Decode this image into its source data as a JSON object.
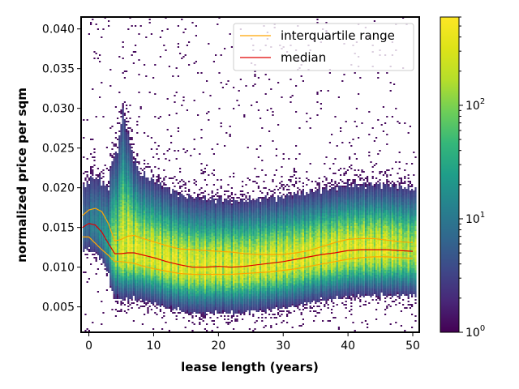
{
  "chart_data": {
    "type": "heatmap",
    "xlabel": "lease length (years)",
    "ylabel": "normalized price per sqm",
    "xlim": [
      -1.2,
      51
    ],
    "ylim": [
      0.0018,
      0.0415
    ],
    "xticks": [
      0,
      10,
      20,
      30,
      40,
      50
    ],
    "xtick_labels": [
      "0",
      "10",
      "20",
      "30",
      "40",
      "50"
    ],
    "yticks": [
      0.005,
      0.01,
      0.015,
      0.02,
      0.025,
      0.03,
      0.035,
      0.04
    ],
    "ytick_labels": [
      "0.005",
      "0.010",
      "0.015",
      "0.020",
      "0.025",
      "0.030",
      "0.035",
      "0.040"
    ],
    "grid": false,
    "legend_position": "top-right",
    "colormap": "viridis",
    "colorbar": {
      "scale": "log",
      "range": [
        1,
        600
      ],
      "tick_labels": [
        {
          "base": "10",
          "exp": "0",
          "value": 1
        },
        {
          "base": "10",
          "exp": "1",
          "value": 10
        },
        {
          "base": "10",
          "exp": "2",
          "value": 100
        }
      ]
    },
    "series": [
      {
        "name": "interquartile range",
        "color": "#ffa500",
        "x": [
          -1,
          0,
          1,
          2,
          3,
          4,
          5,
          6,
          7,
          8,
          10,
          12,
          14,
          16,
          18,
          20,
          22,
          24,
          26,
          28,
          30,
          32,
          34,
          36,
          38,
          40,
          42,
          44,
          46,
          48,
          50
        ],
        "lower": [
          0.0138,
          0.0138,
          0.013,
          0.0122,
          0.0115,
          0.0107,
          0.0107,
          0.0106,
          0.0105,
          0.0102,
          0.0098,
          0.0095,
          0.0092,
          0.0091,
          0.0091,
          0.0091,
          0.0091,
          0.0092,
          0.0093,
          0.0094,
          0.0096,
          0.0098,
          0.0101,
          0.0104,
          0.0107,
          0.011,
          0.0112,
          0.0113,
          0.0113,
          0.0112,
          0.0111
        ],
        "upper": [
          0.0165,
          0.0172,
          0.0174,
          0.017,
          0.0155,
          0.0133,
          0.0135,
          0.0139,
          0.014,
          0.0137,
          0.0132,
          0.0127,
          0.0123,
          0.0122,
          0.0121,
          0.012,
          0.0119,
          0.0117,
          0.0116,
          0.0116,
          0.0116,
          0.0118,
          0.0121,
          0.0126,
          0.0131,
          0.0135,
          0.0136,
          0.0136,
          0.0134,
          0.0132,
          0.0131
        ]
      },
      {
        "name": "median",
        "color": "#e00000",
        "x": [
          -1,
          0,
          1,
          2,
          3,
          4,
          5,
          6,
          7,
          8,
          10,
          12,
          14,
          16,
          18,
          20,
          22,
          24,
          26,
          28,
          30,
          32,
          34,
          36,
          38,
          40,
          42,
          44,
          46,
          48,
          50
        ],
        "values": [
          0.015,
          0.0155,
          0.0153,
          0.0144,
          0.013,
          0.0117,
          0.0117,
          0.0118,
          0.0118,
          0.0116,
          0.0112,
          0.0107,
          0.0103,
          0.01,
          0.01,
          0.0101,
          0.01,
          0.0101,
          0.0103,
          0.0105,
          0.0107,
          0.011,
          0.0113,
          0.0116,
          0.0118,
          0.0121,
          0.0122,
          0.0122,
          0.0122,
          0.0121,
          0.012
        ]
      }
    ]
  }
}
